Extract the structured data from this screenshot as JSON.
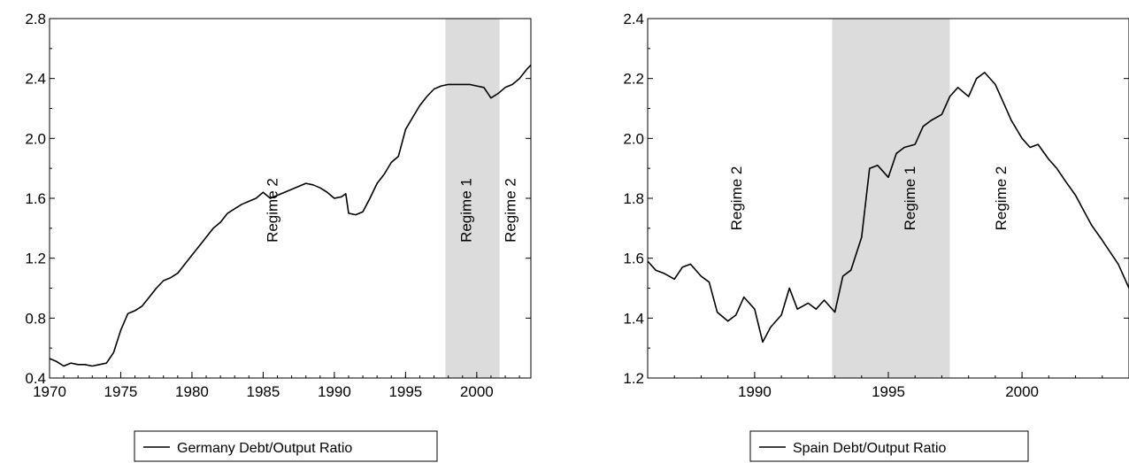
{
  "chart_data": [
    {
      "type": "line",
      "title": "",
      "xlabel": "",
      "ylabel": "",
      "xlim": [
        1970,
        2003.8
      ],
      "ylim": [
        0.4,
        2.8
      ],
      "x_ticks": [
        "1970",
        "1975",
        "1980",
        "1985",
        "1990",
        "1995",
        "2000"
      ],
      "x_tick_values": [
        1970,
        1975,
        1980,
        1985,
        1990,
        1995,
        2000
      ],
      "y_ticks": [
        "0.4",
        "0.8",
        "1.2",
        "1.6",
        "2.0",
        "2.4",
        "2.8"
      ],
      "y_tick_values": [
        0.4,
        0.8,
        1.2,
        1.6,
        2.0,
        2.4,
        2.8
      ],
      "grid": false,
      "legend_position": "bottom-center",
      "shaded_regions": [
        {
          "from": 1997.8,
          "to": 2001.6,
          "color": "#dcdcdc"
        }
      ],
      "regime_labels": [
        {
          "text": "Regime 2",
          "x": 1986.0,
          "y": 1.52
        },
        {
          "text": "Regime 1",
          "x": 1999.6,
          "y": 1.52
        },
        {
          "text": "Regime 2",
          "x": 2002.7,
          "y": 1.52
        }
      ],
      "series": [
        {
          "name": "Germany Debt/Output Ratio",
          "color": "#000000",
          "x": [
            1970,
            1970.5,
            1971,
            1971.5,
            1972,
            1972.5,
            1973,
            1973.5,
            1974,
            1974.5,
            1975,
            1975.5,
            1976,
            1976.5,
            1977,
            1977.5,
            1978,
            1978.5,
            1979,
            1979.5,
            1980,
            1980.5,
            1981,
            1981.5,
            1982,
            1982.5,
            1983,
            1983.5,
            1984,
            1984.5,
            1985,
            1985.5,
            1986,
            1986.5,
            1987,
            1987.5,
            1988,
            1988.5,
            1989,
            1989.5,
            1990,
            1990.5,
            1990.8,
            1991,
            1991.5,
            1992,
            1992.5,
            1993,
            1993.5,
            1994,
            1994.5,
            1995,
            1995.5,
            1996,
            1996.5,
            1997,
            1997.5,
            1998,
            1998.5,
            1999,
            1999.5,
            2000,
            2000.5,
            2001,
            2001.5,
            2002,
            2002.5,
            2003,
            2003.5,
            2003.8
          ],
          "values": [
            0.53,
            0.51,
            0.48,
            0.5,
            0.49,
            0.49,
            0.48,
            0.49,
            0.5,
            0.57,
            0.72,
            0.83,
            0.85,
            0.88,
            0.94,
            1.0,
            1.05,
            1.07,
            1.1,
            1.16,
            1.22,
            1.28,
            1.34,
            1.4,
            1.44,
            1.5,
            1.53,
            1.56,
            1.58,
            1.6,
            1.64,
            1.6,
            1.62,
            1.64,
            1.66,
            1.68,
            1.7,
            1.69,
            1.67,
            1.64,
            1.6,
            1.61,
            1.63,
            1.5,
            1.49,
            1.51,
            1.6,
            1.7,
            1.76,
            1.84,
            1.88,
            2.06,
            2.14,
            2.22,
            2.28,
            2.33,
            2.35,
            2.36,
            2.36,
            2.36,
            2.36,
            2.35,
            2.34,
            2.27,
            2.3,
            2.34,
            2.36,
            2.4,
            2.46,
            2.49
          ]
        }
      ]
    },
    {
      "type": "line",
      "title": "",
      "xlabel": "",
      "ylabel": "",
      "xlim": [
        1986,
        2004
      ],
      "ylim": [
        1.2,
        2.4
      ],
      "x_ticks": [
        "1990",
        "1995",
        "2000"
      ],
      "x_tick_values": [
        1990,
        1995,
        2000
      ],
      "y_ticks": [
        "1.2",
        "1.4",
        "1.6",
        "1.8",
        "2.0",
        "2.2",
        "2.4"
      ],
      "y_tick_values": [
        1.2,
        1.4,
        1.6,
        1.8,
        2.0,
        2.2,
        2.4
      ],
      "grid": false,
      "legend_position": "bottom-center",
      "shaded_regions": [
        {
          "from": 1992.9,
          "to": 1997.3,
          "color": "#dcdcdc"
        }
      ],
      "regime_labels": [
        {
          "text": "Regime 2",
          "x": 1989.5,
          "y": 1.8
        },
        {
          "text": "Regime 1",
          "x": 1996.0,
          "y": 1.8
        },
        {
          "text": "Regime 2",
          "x": 1999.4,
          "y": 1.8
        }
      ],
      "series": [
        {
          "name": "Spain Debt/Output Ratio",
          "color": "#000000",
          "x": [
            1986,
            1986.3,
            1986.6,
            1987,
            1987.3,
            1987.6,
            1988,
            1988.3,
            1988.6,
            1989,
            1989.3,
            1989.6,
            1990,
            1990.3,
            1990.6,
            1991,
            1991.3,
            1991.6,
            1992,
            1992.3,
            1992.6,
            1993,
            1993.3,
            1993.6,
            1994,
            1994.3,
            1994.6,
            1995,
            1995.3,
            1995.6,
            1996,
            1996.3,
            1996.6,
            1997,
            1997.3,
            1997.6,
            1998,
            1998.3,
            1998.6,
            1999,
            1999.3,
            1999.6,
            2000,
            2000.3,
            2000.6,
            2001,
            2001.3,
            2001.6,
            2002,
            2002.3,
            2002.6,
            2003,
            2003.3,
            2003.6,
            2004
          ],
          "values": [
            1.59,
            1.56,
            1.55,
            1.53,
            1.57,
            1.58,
            1.54,
            1.52,
            1.42,
            1.39,
            1.41,
            1.47,
            1.43,
            1.32,
            1.37,
            1.41,
            1.5,
            1.43,
            1.45,
            1.43,
            1.46,
            1.42,
            1.54,
            1.56,
            1.67,
            1.9,
            1.91,
            1.87,
            1.95,
            1.97,
            1.98,
            2.04,
            2.06,
            2.08,
            2.14,
            2.17,
            2.14,
            2.2,
            2.22,
            2.18,
            2.12,
            2.06,
            2.0,
            1.97,
            1.98,
            1.93,
            1.9,
            1.86,
            1.81,
            1.76,
            1.71,
            1.66,
            1.62,
            1.58,
            1.5
          ]
        }
      ]
    }
  ]
}
